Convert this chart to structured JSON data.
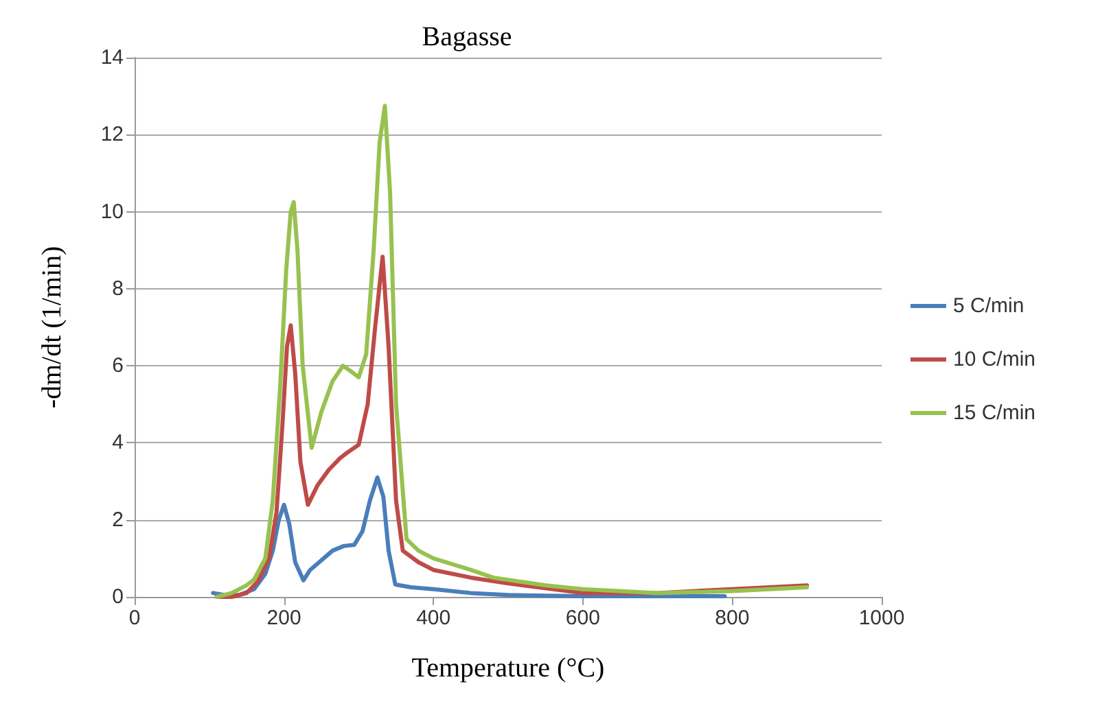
{
  "chart_data": {
    "type": "line",
    "title": "Bagasse",
    "xlabel": "Temperature (°C)",
    "ylabel": "-dm/dt (1/min)",
    "xlim": [
      0,
      1000
    ],
    "xticks": [
      0,
      200,
      400,
      600,
      800,
      1000
    ],
    "ylim": [
      0,
      14
    ],
    "yticks": [
      0,
      2,
      4,
      6,
      8,
      10,
      12,
      14
    ],
    "grid": "y",
    "legend": "right",
    "marker": "none",
    "line_style": "solid",
    "series": [
      {
        "name": "5 C/min",
        "color": "#4a7ebb",
        "x": [
          105,
          120,
          140,
          160,
          175,
          185,
          193,
          200,
          207,
          215,
          226,
          235,
          250,
          265,
          280,
          294,
          305,
          315,
          325,
          333,
          340,
          349,
          370,
          400,
          450,
          500,
          550,
          600,
          700,
          790
        ],
        "values": [
          0.1,
          0.05,
          0.05,
          0.2,
          0.6,
          1.2,
          2.0,
          2.39,
          1.9,
          0.9,
          0.43,
          0.7,
          0.95,
          1.2,
          1.32,
          1.35,
          1.7,
          2.5,
          3.1,
          2.6,
          1.2,
          0.32,
          0.25,
          0.2,
          0.1,
          0.05,
          0.03,
          0.02,
          0.02,
          0.02
        ]
      },
      {
        "name": "10 C/min",
        "color": "#be4b48",
        "x": [
          110,
          130,
          150,
          165,
          180,
          190,
          198,
          204,
          209,
          215,
          222,
          232,
          245,
          260,
          275,
          285,
          300,
          312,
          322,
          332,
          340,
          350,
          359,
          380,
          400,
          450,
          500,
          600,
          700,
          800,
          900
        ],
        "values": [
          0.0,
          0.0,
          0.1,
          0.4,
          1.0,
          2.2,
          4.5,
          6.5,
          7.05,
          5.8,
          3.5,
          2.39,
          2.9,
          3.3,
          3.6,
          3.75,
          3.95,
          5.0,
          7.0,
          8.83,
          6.5,
          2.5,
          1.2,
          0.9,
          0.7,
          0.5,
          0.35,
          0.1,
          0.1,
          0.2,
          0.3
        ]
      },
      {
        "name": "15 C/min",
        "color": "#98c14f",
        "x": [
          110,
          130,
          150,
          160,
          175,
          185,
          195,
          203,
          209,
          213,
          218,
          225,
          237,
          250,
          265,
          279,
          290,
          300,
          310,
          320,
          328,
          335,
          342,
          350,
          364,
          380,
          400,
          450,
          480,
          550,
          600,
          700,
          800,
          900
        ],
        "values": [
          0.0,
          0.1,
          0.3,
          0.45,
          1.0,
          2.5,
          5.5,
          8.5,
          10.0,
          10.25,
          9.0,
          6.0,
          3.87,
          4.8,
          5.6,
          6.0,
          5.85,
          5.7,
          6.3,
          9.0,
          11.8,
          12.75,
          10.5,
          5.0,
          1.5,
          1.2,
          1.0,
          0.7,
          0.5,
          0.3,
          0.2,
          0.1,
          0.15,
          0.25
        ]
      }
    ]
  }
}
